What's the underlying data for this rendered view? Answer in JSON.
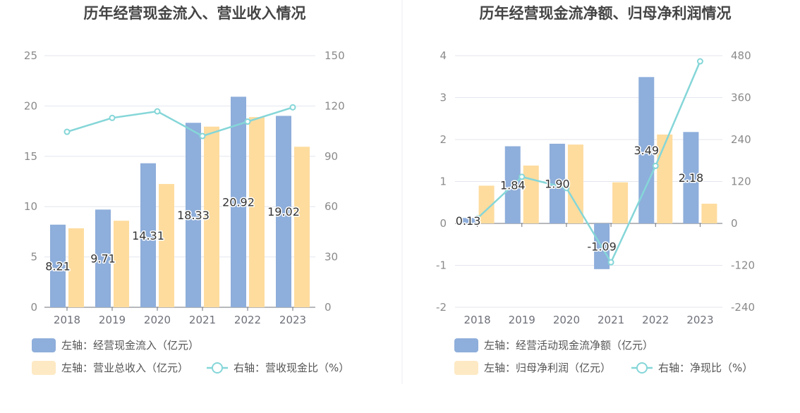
{
  "colors": {
    "bar1": "#8eaedb",
    "bar2": "#fedc9e",
    "line": "#85d6d8",
    "legend_bar2": "#fde9c4",
    "grid": "#e3e6ee",
    "axis": "#6e7079"
  },
  "chart_data": [
    {
      "type": "bar",
      "title": "历年经营现金流入、营业收入情况",
      "categories": [
        "2018",
        "2019",
        "2020",
        "2021",
        "2022",
        "2023"
      ],
      "y_left": {
        "min": 0,
        "max": 25,
        "ticks": [
          "0",
          "5",
          "10",
          "15",
          "20",
          "25"
        ]
      },
      "y_right": {
        "min": 0,
        "max": 150,
        "ticks": [
          "0",
          "30",
          "60",
          "90",
          "120",
          "150"
        ]
      },
      "series": [
        {
          "name": "左轴：经营现金流入（亿元）",
          "kind": "bar",
          "axis": "left",
          "values": [
            8.21,
            9.71,
            14.31,
            18.33,
            20.92,
            19.02
          ],
          "labels": [
            "8.21",
            "9.71",
            "14.31",
            "18.33",
            "20.92",
            "19.02"
          ]
        },
        {
          "name": "左轴：营业总收入（亿元）",
          "kind": "bar",
          "axis": "left",
          "values": [
            7.85,
            8.6,
            12.25,
            17.95,
            18.9,
            15.95
          ]
        },
        {
          "name": "右轴：营收现金比（%）",
          "kind": "line",
          "axis": "right",
          "values": [
            104.6,
            112.9,
            116.8,
            102.1,
            110.7,
            119.2
          ]
        }
      ]
    },
    {
      "type": "bar",
      "title": "历年经营现金流净额、归母净利润情况",
      "categories": [
        "2018",
        "2019",
        "2020",
        "2021",
        "2022",
        "2023"
      ],
      "y_left": {
        "min": -2,
        "max": 4,
        "ticks": [
          "-2",
          "-1",
          "0",
          "1",
          "2",
          "3",
          "4"
        ]
      },
      "y_right": {
        "min": -240,
        "max": 480,
        "ticks": [
          "-240",
          "-120",
          "0",
          "120",
          "240",
          "360",
          "480"
        ]
      },
      "series": [
        {
          "name": "左轴：经营活动现金流净额（亿元）",
          "kind": "bar",
          "axis": "left",
          "values": [
            0.13,
            1.84,
            1.9,
            -1.09,
            3.49,
            2.18
          ],
          "labels": [
            "0.13",
            "1.84",
            "1.90",
            "-1.09",
            "3.49",
            "2.18"
          ]
        },
        {
          "name": "左轴：归母净利润（亿元）",
          "kind": "bar",
          "axis": "left",
          "values": [
            0.9,
            1.38,
            1.88,
            0.98,
            2.12,
            0.47
          ]
        },
        {
          "name": "右轴：净现比（%）",
          "kind": "line",
          "axis": "right",
          "values": [
            14.4,
            133.3,
            101.1,
            -111.2,
            164.6,
            463.8
          ]
        }
      ]
    }
  ]
}
